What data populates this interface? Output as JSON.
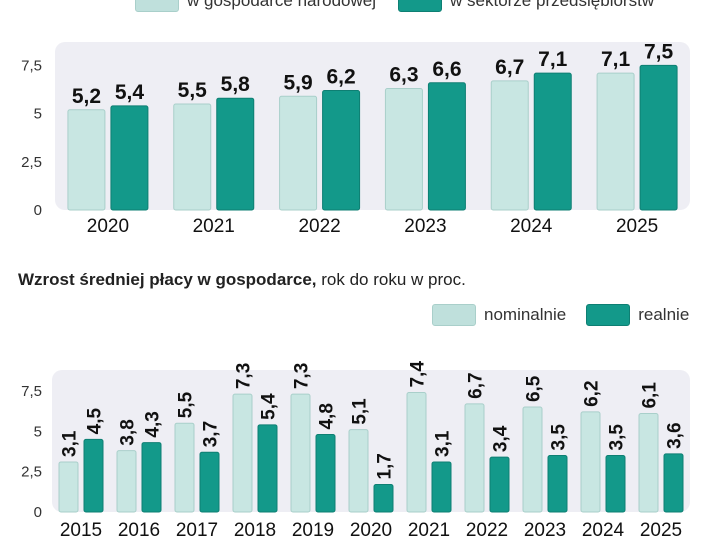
{
  "chart_data": [
    {
      "type": "bar",
      "title": "",
      "categories": [
        "2020",
        "2021",
        "2022",
        "2023",
        "2024",
        "2025"
      ],
      "series": [
        {
          "name": "w gospodarce narodowej",
          "values": [
            5.2,
            5.5,
            5.9,
            6.3,
            6.7,
            7.1
          ],
          "color": "#c8e6e2"
        },
        {
          "name": "w sektorze przedsiębiorstw",
          "values": [
            5.4,
            5.8,
            6.2,
            6.6,
            7.1,
            7.5
          ],
          "color": "#13998a"
        }
      ],
      "value_labels": [
        [
          "5,2",
          "5,5",
          "5,9",
          "6,3",
          "6,7",
          "7,1"
        ],
        [
          "5,4",
          "5,8",
          "6,2",
          "6,6",
          "7,1",
          "7,5"
        ]
      ],
      "yticks": [
        "0",
        "2,5",
        "5",
        "7,5"
      ],
      "ylim": [
        0,
        8.3
      ],
      "xlabel": "",
      "ylabel": "",
      "legend_position": "top-right",
      "grid": false
    },
    {
      "type": "bar",
      "title": "Wzrost średniej płacy w gospodarce,",
      "subtitle": "rok do roku w proc.",
      "categories": [
        "2015",
        "2016",
        "2017",
        "2018",
        "2019",
        "2020",
        "2021",
        "2022",
        "2023",
        "2024",
        "2025"
      ],
      "series": [
        {
          "name": "nominalnie",
          "values": [
            3.1,
            3.8,
            5.5,
            7.3,
            7.3,
            5.1,
            7.4,
            6.7,
            6.5,
            6.2,
            6.1
          ],
          "color": "#c8e6e2"
        },
        {
          "name": "realnie",
          "values": [
            4.5,
            4.3,
            3.7,
            5.4,
            4.8,
            1.7,
            3.1,
            3.4,
            3.5,
            3.5,
            3.6
          ],
          "color": "#13998a"
        }
      ],
      "value_labels": [
        [
          "3,1",
          "3,8",
          "5,5",
          "7,3",
          "7,3",
          "5,1",
          "7,4",
          "6,7",
          "6,5",
          "6,2",
          "6,1"
        ],
        [
          "4,5",
          "4,3",
          "3,7",
          "5,4",
          "4,8",
          "1,7",
          "3,1",
          "3,4",
          "3,5",
          "3,5",
          "3,6"
        ]
      ],
      "yticks": [
        "0",
        "2,5",
        "5",
        "7,5"
      ],
      "ylim": [
        0,
        8.3
      ],
      "xlabel": "",
      "ylabel": "",
      "legend_position": "top-right",
      "grid": false
    }
  ]
}
